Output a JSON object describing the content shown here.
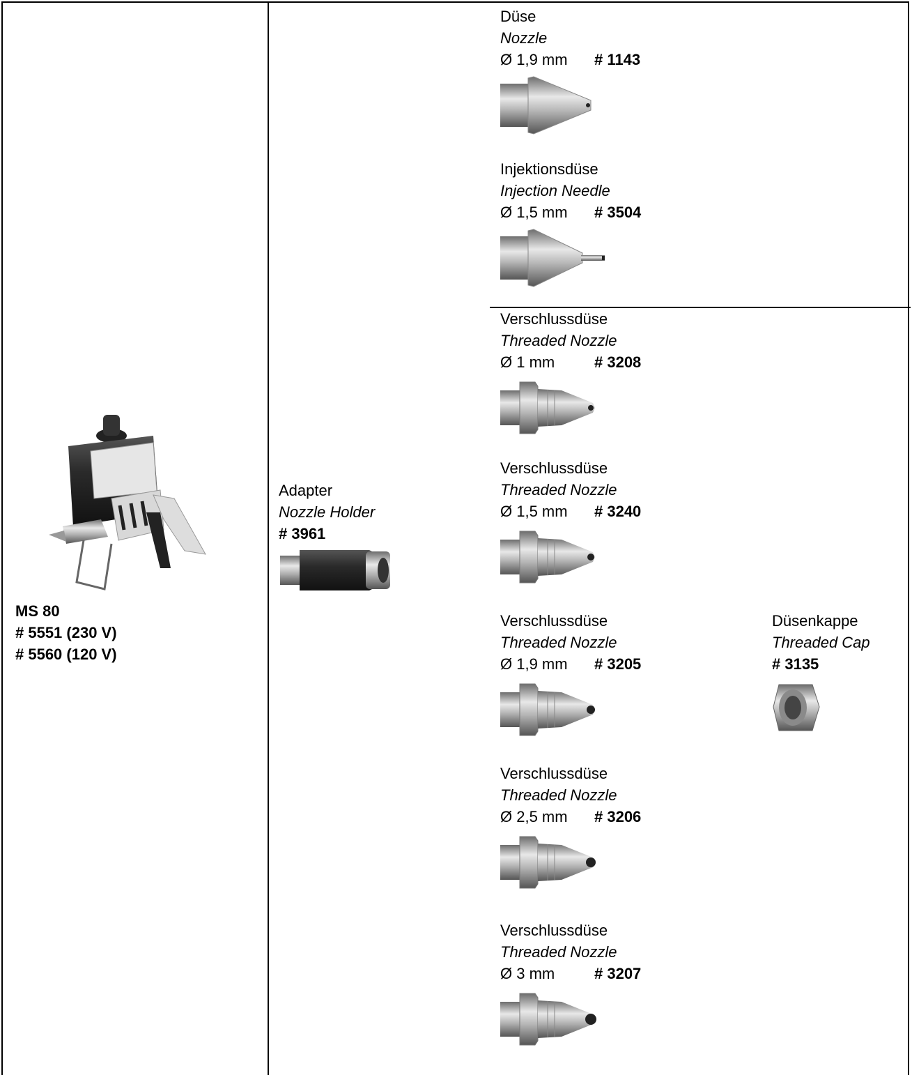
{
  "gun": {
    "name": "MS 80",
    "codes": [
      "# 5551 (230 V)",
      "# 5560 (120 V)"
    ]
  },
  "adapter": {
    "label_de": "Adapter",
    "label_en": "Nozzle Holder",
    "code": "# 3961"
  },
  "nozzles": [
    {
      "label_de": "Düse",
      "label_en": "Nozzle",
      "diameter": "Ø 1,9 mm",
      "code": "# 1143"
    },
    {
      "label_de": "Injektionsdüse",
      "label_en": "Injection Needle",
      "diameter": "Ø 1,5 mm",
      "code": "# 3504"
    },
    {
      "label_de": "Verschlussdüse",
      "label_en": "Threaded Nozzle",
      "diameter": "Ø 1 mm",
      "code": "# 3208"
    },
    {
      "label_de": "Verschlussdüse",
      "label_en": "Threaded Nozzle",
      "diameter": "Ø 1,5 mm",
      "code": "# 3240"
    },
    {
      "label_de": "Verschlussdüse",
      "label_en": "Threaded Nozzle",
      "diameter": "Ø 1,9 mm",
      "code": "# 3205"
    },
    {
      "label_de": "Verschlussdüse",
      "label_en": "Threaded Nozzle",
      "diameter": "Ø 2,5 mm",
      "code": "# 3206"
    },
    {
      "label_de": "Verschlussdüse",
      "label_en": "Threaded Nozzle",
      "diameter": "Ø 3 mm",
      "code": "# 3207"
    }
  ],
  "cap": {
    "label_de": "Düsenkappe",
    "label_en": "Threaded Cap",
    "code": "# 3135"
  }
}
